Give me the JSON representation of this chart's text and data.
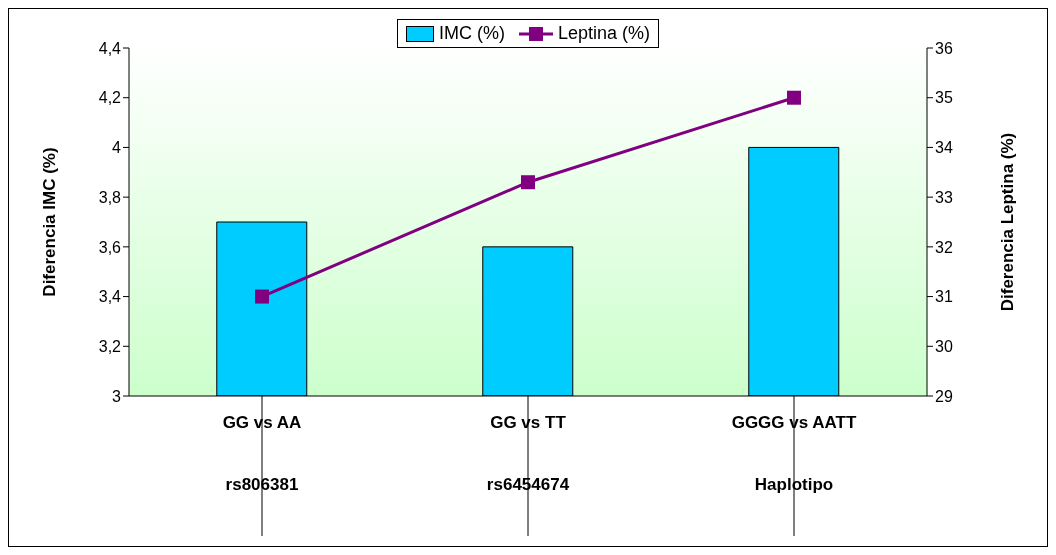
{
  "chart_data": {
    "type": "bar",
    "categories": [
      "GG vs AA\nrs806381",
      "GG vs TT\nrs6454674",
      "GGGG vs AATT\nHaplotipo"
    ],
    "series": [
      {
        "name": "IMC (%)",
        "color": "#00ccff",
        "values": [
          3.7,
          3.6,
          4.0
        ]
      },
      {
        "name": "Leptina  (%)",
        "type": "line",
        "axis": "y2",
        "color": "#800080",
        "values": [
          31,
          33.3,
          35
        ]
      }
    ],
    "ylabel": "Diferencia IMC (%)",
    "y2label": "Diferencia Leptina (%)",
    "ylim": [
      3,
      4.4
    ],
    "yticks": [
      3,
      {
        "value": 3.2,
        "label": "3,2"
      },
      {
        "value": 3.4,
        "label": "3,4"
      },
      {
        "value": 3.6,
        "label": "3,6"
      },
      {
        "value": 3.8,
        "label": "3,8"
      },
      4,
      {
        "value": 4.2,
        "label": "4,2"
      },
      {
        "value": 4.4,
        "label": "4,4"
      }
    ],
    "y2lim": [
      29,
      36
    ],
    "y2ticks": [
      29,
      30,
      31,
      32,
      33,
      34,
      35,
      36
    ],
    "legend": "top",
    "marker": "square",
    "grid": false
  }
}
